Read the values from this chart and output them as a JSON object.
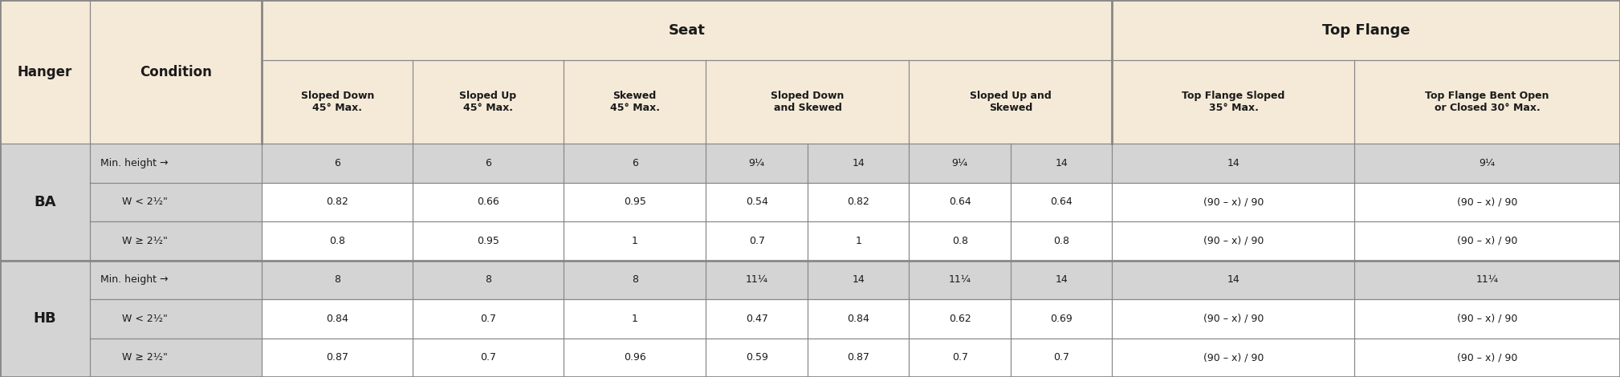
{
  "bg_color": "#f5ead8",
  "row_gray": "#d4d4d4",
  "row_white": "#ffffff",
  "border_color": "#888888",
  "text_color": "#1a1a1a",
  "col1_header": "Hanger",
  "col2_header": "Condition",
  "seat_header": "Seat",
  "topflange_header": "Top Flange",
  "sub_headers": [
    "Sloped Down\n45° Max.",
    "Sloped Up\n45° Max.",
    "Skewed\n45° Max.",
    "Sloped Down\nand Skewed",
    "Sloped Up and\nSkewed",
    "Top Flange Sloped\n35° Max.",
    "Top Flange Bent Open\nor Closed 30° Max."
  ],
  "col_raw": [
    55,
    105,
    92,
    92,
    87,
    62,
    62,
    62,
    62,
    148,
    162
  ],
  "row_raw": [
    155,
    215,
    100,
    100,
    100,
    100,
    100,
    100
  ],
  "rows": [
    {
      "hanger": "BA",
      "data": [
        [
          "Min. height →",
          "6",
          "6",
          "6",
          "9¼",
          "14",
          "9¼",
          "14",
          "14",
          "9¼"
        ],
        [
          "W < 2½\"",
          "0.82",
          "0.66",
          "0.95",
          "0.54",
          "0.82",
          "0.64",
          "0.64",
          "(90 – x) / 90",
          "(90 – x) / 90"
        ],
        [
          "W ≥ 2½\"",
          "0.8",
          "0.95",
          "1",
          "0.7",
          "1",
          "0.8",
          "0.8",
          "(90 – x) / 90",
          "(90 – x) / 90"
        ]
      ]
    },
    {
      "hanger": "HB",
      "data": [
        [
          "Min. height →",
          "8",
          "8",
          "8",
          "11¼",
          "14",
          "11¼",
          "14",
          "14",
          "11¼"
        ],
        [
          "W < 2½\"",
          "0.84",
          "0.7",
          "1",
          "0.47",
          "0.84",
          "0.62",
          "0.69",
          "(90 – x) / 90",
          "(90 – x) / 90"
        ],
        [
          "W ≥ 2½\"",
          "0.87",
          "0.7",
          "0.96",
          "0.59",
          "0.87",
          "0.7",
          "0.7",
          "(90 – x) / 90",
          "(90 – x) / 90"
        ]
      ]
    }
  ]
}
